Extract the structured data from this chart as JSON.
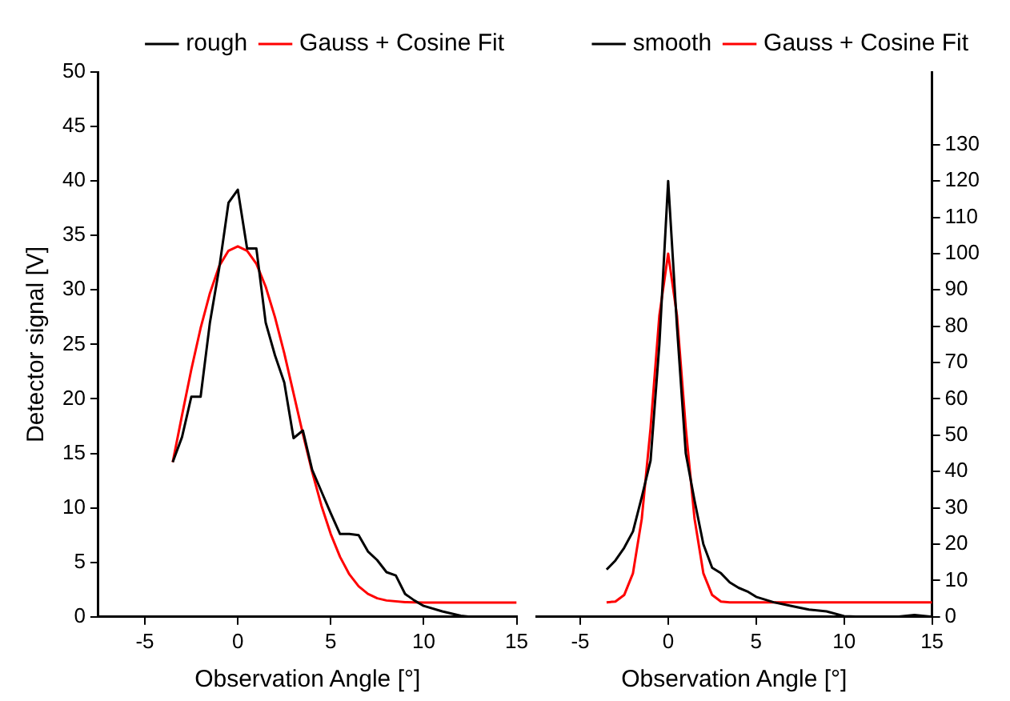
{
  "chart_data": [
    {
      "type": "line",
      "xlabel": "Observation Angle [°]",
      "ylabel": "Detector signal [V]",
      "xlim": [
        -7.5,
        15
      ],
      "xticks": [
        -5,
        0,
        5,
        10,
        15
      ],
      "ylim": [
        0,
        50
      ],
      "yticks": [
        0,
        5,
        10,
        15,
        20,
        25,
        30,
        35,
        40,
        45,
        50
      ],
      "grid": false,
      "legend": "top right",
      "marker": "none",
      "line_style": "solid",
      "series": [
        {
          "name": "rough",
          "color": "#000000",
          "x": [
            -3.5,
            -3,
            -2.5,
            -2,
            -1.5,
            -1,
            -0.5,
            0,
            0.5,
            1,
            1.5,
            2,
            2.5,
            3,
            3.5,
            4,
            4.5,
            5,
            5.5,
            6,
            6.5,
            7,
            7.5,
            8,
            8.5,
            9,
            9.5,
            10,
            11,
            12,
            12.5
          ],
          "values": [
            14.2,
            16.5,
            20.2,
            20.2,
            27,
            32,
            38,
            39.2,
            33.8,
            33.8,
            27,
            24,
            21.5,
            16.4,
            17.1,
            13.5,
            11.5,
            9.5,
            7.6,
            7.6,
            7.5,
            6,
            5.2,
            4.1,
            3.8,
            2.1,
            1.5,
            1,
            0.5,
            0.1,
            0
          ]
        },
        {
          "name": "Gauss + Cosine Fit",
          "color": "#ff0000",
          "x": [
            -3.5,
            -3,
            -2.5,
            -2,
            -1.5,
            -1,
            -0.5,
            0,
            0.5,
            1,
            1.5,
            2,
            2.5,
            3,
            3.5,
            4,
            4.5,
            5,
            5.5,
            6,
            6.5,
            7,
            7.5,
            8,
            9,
            10,
            12,
            15
          ],
          "values": [
            14.2,
            18.5,
            22.7,
            26.5,
            29.7,
            32.2,
            33.6,
            34,
            33.6,
            32.4,
            30.3,
            27.5,
            24.2,
            20.5,
            16.8,
            13.3,
            10.2,
            7.6,
            5.5,
            3.9,
            2.8,
            2.1,
            1.7,
            1.5,
            1.35,
            1.3,
            1.3,
            1.3
          ]
        }
      ]
    },
    {
      "type": "line",
      "xlabel": "Observation Angle [°]",
      "xlim": [
        -7.5,
        15
      ],
      "xticks": [
        -5,
        0,
        5,
        10,
        15
      ],
      "y2lim": [
        0,
        150
      ],
      "y2ticks": [
        0,
        10,
        20,
        30,
        40,
        50,
        60,
        70,
        80,
        90,
        100,
        110,
        120,
        130
      ],
      "grid": false,
      "legend": "top right",
      "marker": "none",
      "line_style": "solid",
      "series": [
        {
          "name": "smooth",
          "color": "#000000",
          "axis": "y2",
          "x": [
            -3.5,
            -3,
            -2.5,
            -2,
            -1.5,
            -1,
            -0.5,
            0,
            0.5,
            1,
            1.5,
            2,
            2.5,
            3,
            3.5,
            4,
            4.5,
            5,
            6,
            7,
            8,
            9,
            10,
            11,
            13,
            14,
            15
          ],
          "values": [
            13,
            15.5,
            19,
            23.5,
            33,
            43,
            75,
            120,
            80,
            45,
            32,
            20,
            13.5,
            12,
            9.5,
            8,
            7,
            5.5,
            4,
            3,
            2,
            1.5,
            0.2,
            0,
            0,
            0.5,
            0
          ]
        },
        {
          "name": "Gauss + Cosine Fit",
          "color": "#ff0000",
          "axis": "y2",
          "x": [
            -3.5,
            -3,
            -2.5,
            -2,
            -1.5,
            -1,
            -0.5,
            0,
            0.5,
            1,
            1.5,
            2,
            2.5,
            3,
            3.5,
            15
          ],
          "values": [
            4,
            4.2,
            6,
            12,
            27,
            52,
            83,
            100,
            83,
            52,
            27,
            12,
            6,
            4.2,
            4,
            4
          ]
        }
      ]
    }
  ]
}
